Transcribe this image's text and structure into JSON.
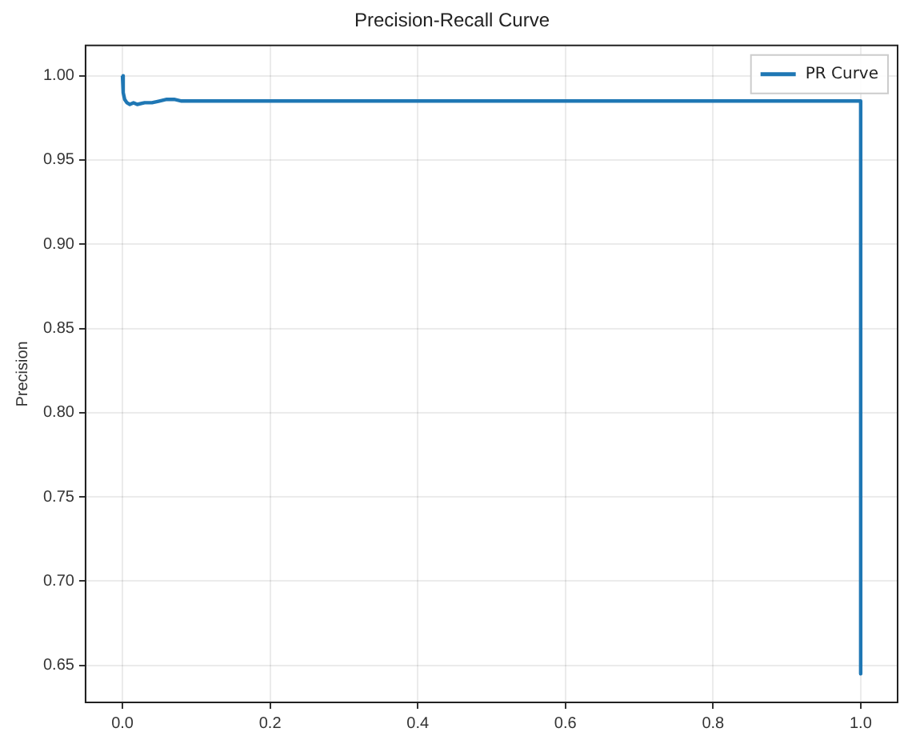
{
  "chart_data": {
    "type": "line",
    "title": "Precision-Recall Curve",
    "ylabel": "Precision",
    "x": [
      0,
      0.001,
      0.003,
      0.006,
      0.01,
      0.015,
      0.02,
      0.03,
      0.04,
      0.05,
      0.06,
      0.07,
      0.08,
      0.1,
      0.15,
      0.2,
      0.3,
      0.4,
      0.5,
      0.6,
      0.7,
      0.8,
      0.9,
      0.95,
      0.99,
      1,
      1
    ],
    "series": [
      {
        "name": "PR Curve",
        "color": "#1f77b4",
        "values": [
          1.0,
          0.99,
          0.986,
          0.984,
          0.983,
          0.984,
          0.983,
          0.984,
          0.984,
          0.985,
          0.986,
          0.986,
          0.985,
          0.985,
          0.985,
          0.985,
          0.985,
          0.985,
          0.985,
          0.985,
          0.985,
          0.985,
          0.985,
          0.985,
          0.985,
          0.985,
          0.645
        ]
      }
    ],
    "xlim": [
      -0.05,
      1.05
    ],
    "ylim": [
      0.628,
      1.018
    ],
    "xticks": [
      {
        "value": 0,
        "label": "0.0"
      },
      0.2,
      0.4,
      0.6,
      0.8,
      {
        "value": 1,
        "label": "1.0"
      }
    ],
    "yticks": [
      0.65,
      {
        "value": 0.7,
        "label": "0.70"
      },
      0.75,
      {
        "value": 0.8,
        "label": "0.80"
      },
      0.85,
      {
        "value": 0.9,
        "label": "0.90"
      },
      0.95,
      {
        "value": 1,
        "label": "1.00"
      }
    ],
    "grid": true,
    "legend": "top right",
    "marker": "none",
    "line_style": "solid"
  }
}
